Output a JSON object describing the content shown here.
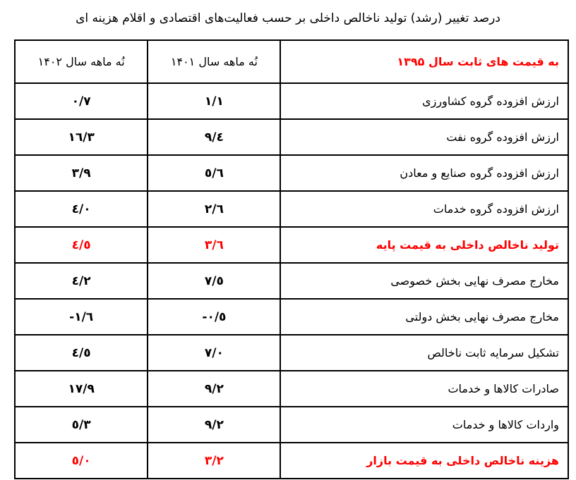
{
  "title": "درصد تغییر (رشد) تولید ناخالص داخلی بر حسب فعالیت‌های اقتصادی و اقلام هزینه ای",
  "colors": {
    "highlight": "#ff0000",
    "text": "#000000"
  },
  "table": {
    "headers": [
      "به قیمت های ثابت سال ۱۳۹۵",
      "نُه ماهه سال ۱۴۰۱",
      "نُه ماهه سال ۱۴۰۲"
    ],
    "rows": [
      {
        "label": "ارزش افزوده گروه کشاورزی",
        "y1401": "١/١",
        "y1402": "٠/٧",
        "highlight": false
      },
      {
        "label": "ارزش افزوده گروه نفت",
        "y1401": "٩/٤",
        "y1402": "١٦/٣",
        "highlight": false
      },
      {
        "label": "ارزش افزوده گروه صنایع و معادن",
        "y1401": "٥/٦",
        "y1402": "٣/٩",
        "highlight": false
      },
      {
        "label": "ارزش افزوده گروه خدمات",
        "y1401": "٢/٦",
        "y1402": "٤/٠",
        "highlight": false
      },
      {
        "label": "تولید ناخالص داخلی به قیمت پایه",
        "y1401": "٣/٦",
        "y1402": "٤/٥",
        "highlight": true
      },
      {
        "label": "مخارج مصرف نهایی بخش خصوصی",
        "y1401": "٧/٥",
        "y1402": "٤/٢",
        "highlight": false
      },
      {
        "label": "مخارج مصرف نهایی بخش دولتی",
        "y1401": "-٠/٥",
        "y1402": "-١/٦",
        "highlight": false
      },
      {
        "label": "تشکیل سرمایه ثابت ناخالص",
        "y1401": "٧/٠",
        "y1402": "٤/٥",
        "highlight": false
      },
      {
        "label": "صادرات کالاها و خدمات",
        "y1401": "٩/٢",
        "y1402": "١٧/٩",
        "highlight": false
      },
      {
        "label": "واردات کالاها و خدمات",
        "y1401": "٩/٢",
        "y1402": "٥/٣",
        "highlight": false
      },
      {
        "label": "هزینه ناخالص داخلی به قیمت بازار",
        "y1401": "٣/٢",
        "y1402": "٥/٠",
        "highlight": true
      }
    ]
  }
}
